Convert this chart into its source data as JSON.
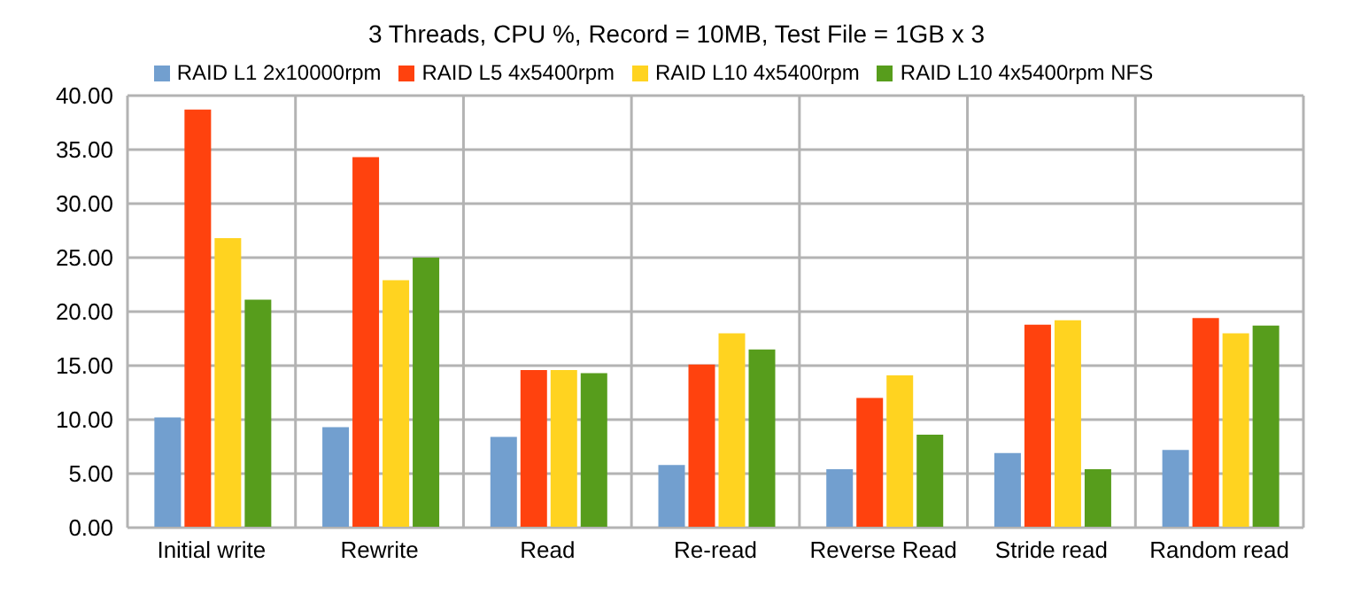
{
  "chart_data": {
    "type": "bar",
    "title": "3 Threads, CPU %, Record = 10MB, Test File = 1GB x 3",
    "categories": [
      "Initial write",
      "Rewrite",
      "Read",
      "Re-read",
      "Reverse Read",
      "Stride read",
      "Random read"
    ],
    "series": [
      {
        "name": "RAID L1 2x10000rpm",
        "color": "#729fcf",
        "values": [
          10.2,
          9.3,
          8.4,
          5.8,
          5.4,
          6.9,
          7.2
        ]
      },
      {
        "name": "RAID L5 4x5400rpm",
        "color": "#ff420e",
        "values": [
          38.7,
          34.3,
          14.6,
          15.1,
          12.0,
          18.8,
          19.4
        ]
      },
      {
        "name": "RAID L10 4x5400rpm",
        "color": "#ffd320",
        "values": [
          26.8,
          22.9,
          14.6,
          18.0,
          14.1,
          19.2,
          18.0
        ]
      },
      {
        "name": "RAID L10 4x5400rpm NFS",
        "color": "#579d1c",
        "values": [
          21.1,
          25.0,
          14.3,
          16.5,
          8.6,
          5.4,
          18.7
        ]
      }
    ],
    "ylim": [
      0,
      40
    ],
    "yticks": [
      {
        "value": 0,
        "label": "0.00"
      },
      {
        "value": 5,
        "label": "5.00"
      },
      {
        "value": 10,
        "label": "10.00"
      },
      {
        "value": 15,
        "label": "15.00"
      },
      {
        "value": 20,
        "label": "20.00"
      },
      {
        "value": 25,
        "label": "25.00"
      },
      {
        "value": 30,
        "label": "30.00"
      },
      {
        "value": 35,
        "label": "35.00"
      },
      {
        "value": 40,
        "label": "40.00"
      }
    ],
    "grid": true,
    "legend": "top"
  }
}
